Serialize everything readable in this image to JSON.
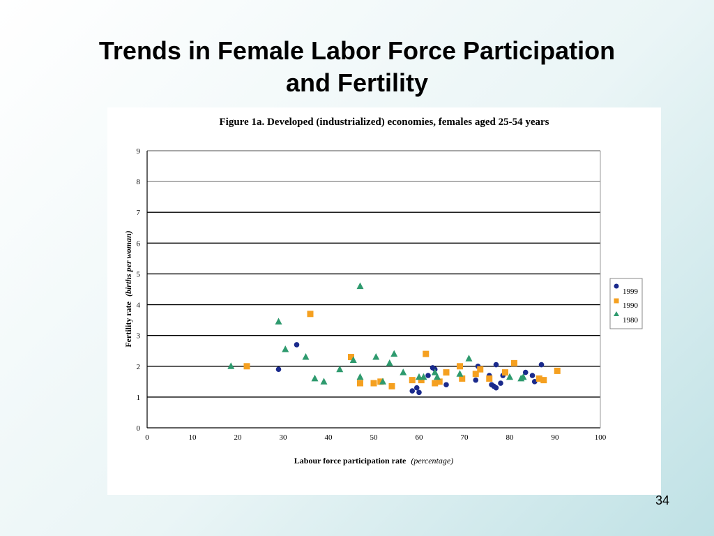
{
  "slide": {
    "title_line1": "Trends in Female Labor Force Participation",
    "title_line2": "and Fertility",
    "page_number": "34"
  },
  "colors": {
    "s1999": "#1a2a8c",
    "s1990": "#f5a020",
    "s1980": "#2e9a6e",
    "gridline": "#000000",
    "background_top": "#ffffff",
    "background_bottom": "#bfe1e5"
  },
  "chart_data": {
    "type": "scatter",
    "title": "Figure 1a. Developed (industrialized) economies, females aged 25-54 years",
    "xlabel": "Labour force participation rate",
    "xlabel_unit": "(percentage)",
    "ylabel": "Fertility rate",
    "ylabel_unit": "(births per woman)",
    "xlim": [
      0,
      100
    ],
    "ylim": [
      0,
      9
    ],
    "x_ticks": [
      "0",
      "10",
      "20",
      "30",
      "40",
      "50",
      "60",
      "70",
      "80",
      "90",
      "100"
    ],
    "y_ticks": [
      "0",
      "1",
      "2",
      "3",
      "4",
      "5",
      "6",
      "7",
      "8",
      "9"
    ],
    "grid": true,
    "legend_position": "right",
    "series": [
      {
        "name": "1999",
        "marker": "circle",
        "points": [
          [
            29,
            1.9
          ],
          [
            33,
            2.7
          ],
          [
            58.5,
            1.2
          ],
          [
            59.5,
            1.3
          ],
          [
            60,
            1.15
          ],
          [
            62,
            1.7
          ],
          [
            63,
            1.95
          ],
          [
            63.5,
            1.9
          ],
          [
            66,
            1.4
          ],
          [
            72.5,
            1.55
          ],
          [
            73,
            2.0
          ],
          [
            75.5,
            1.7
          ],
          [
            76,
            1.4
          ],
          [
            76.5,
            1.35
          ],
          [
            77,
            2.05
          ],
          [
            77,
            1.3
          ],
          [
            78,
            1.45
          ],
          [
            78.5,
            1.7
          ],
          [
            83.5,
            1.8
          ],
          [
            85,
            1.7
          ],
          [
            85.5,
            1.5
          ],
          [
            87,
            2.05
          ]
        ]
      },
      {
        "name": "1990",
        "marker": "square",
        "points": [
          [
            22,
            2.0
          ],
          [
            36,
            3.7
          ],
          [
            45,
            2.3
          ],
          [
            47,
            1.45
          ],
          [
            50,
            1.45
          ],
          [
            51.5,
            1.5
          ],
          [
            54,
            1.35
          ],
          [
            58.5,
            1.55
          ],
          [
            60.5,
            1.55
          ],
          [
            61.5,
            2.4
          ],
          [
            63.5,
            1.45
          ],
          [
            64.5,
            1.5
          ],
          [
            66,
            1.8
          ],
          [
            69,
            2.0
          ],
          [
            69.5,
            1.6
          ],
          [
            72.5,
            1.75
          ],
          [
            73.5,
            1.9
          ],
          [
            75.5,
            1.6
          ],
          [
            79,
            1.8
          ],
          [
            81,
            2.1
          ],
          [
            86.5,
            1.6
          ],
          [
            87.5,
            1.55
          ],
          [
            90.5,
            1.85
          ]
        ]
      },
      {
        "name": "1980",
        "marker": "triangle",
        "points": [
          [
            18.5,
            2.0
          ],
          [
            29,
            3.45
          ],
          [
            30.5,
            2.55
          ],
          [
            35,
            2.3
          ],
          [
            37,
            1.6
          ],
          [
            39,
            1.5
          ],
          [
            42.5,
            1.9
          ],
          [
            45.5,
            2.2
          ],
          [
            47,
            4.6
          ],
          [
            47,
            1.65
          ],
          [
            50.5,
            2.3
          ],
          [
            52,
            1.5
          ],
          [
            53.5,
            2.1
          ],
          [
            54.5,
            2.4
          ],
          [
            56.5,
            1.8
          ],
          [
            60,
            1.65
          ],
          [
            61,
            1.65
          ],
          [
            63.5,
            1.8
          ],
          [
            64,
            1.65
          ],
          [
            69,
            1.75
          ],
          [
            71,
            2.25
          ],
          [
            80,
            1.65
          ],
          [
            82.5,
            1.6
          ],
          [
            83,
            1.65
          ]
        ]
      }
    ]
  }
}
